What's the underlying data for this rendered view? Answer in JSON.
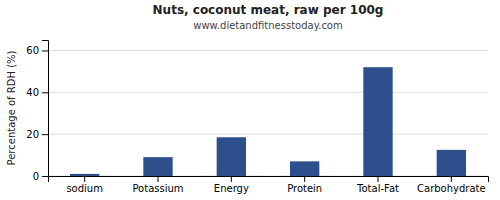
{
  "chart_data": {
    "type": "bar",
    "title": "Nuts, coconut meat, raw per 100g",
    "subtitle": "www.dietandfitnesstoday.com",
    "categories": [
      "sodium",
      "Potassium",
      "Energy",
      "Protein",
      "Total-Fat",
      "Carbohydrate"
    ],
    "values": [
      1.0,
      9.0,
      18.5,
      7.0,
      52.0,
      12.5
    ],
    "color": "#2e4e8c",
    "ylabel": "Percentage of RDH (%)",
    "ylim": [
      0,
      65
    ],
    "yticks": [
      0,
      20,
      40,
      60
    ],
    "grid": true
  }
}
